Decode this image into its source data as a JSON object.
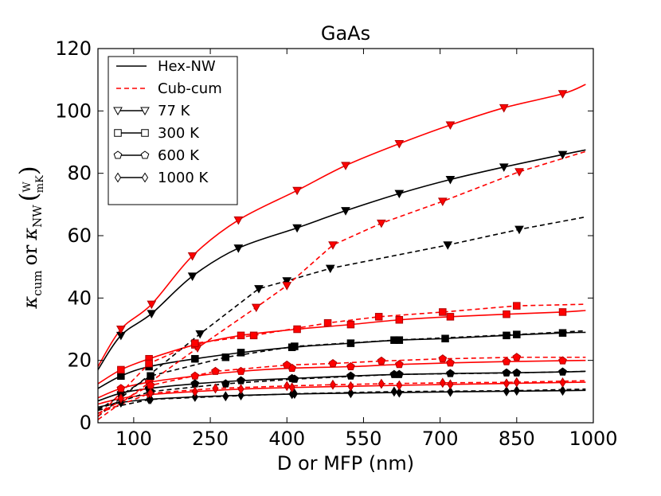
{
  "chart_data": {
    "type": "line",
    "title": "GaAs",
    "xlabel": "D or MFP (nm)",
    "ylabel": {
      "kappa": "κ",
      "cum_sub": "cum",
      "or": "or",
      "nw_sub": "NW",
      "unit_num": "W",
      "unit_den": "mK"
    },
    "xlim": [
      30,
      1000
    ],
    "ylim": [
      0,
      120
    ],
    "x_ticks": [
      100,
      250,
      400,
      550,
      700,
      850,
      1000
    ],
    "y_ticks": [
      0,
      20,
      40,
      60,
      80,
      100,
      120
    ],
    "grid": false,
    "legend_position": "top-left",
    "legend": [
      {
        "label": "Hex-NW",
        "style": "solid",
        "color": "#000000"
      },
      {
        "label": "Cub-cum",
        "style": "dashed",
        "color": "#ff0000"
      },
      {
        "label": "77 K",
        "marker": "triangle-down"
      },
      {
        "label": "300 K",
        "marker": "square"
      },
      {
        "label": "600 K",
        "marker": "pentagon"
      },
      {
        "label": "1000 K",
        "marker": "diamond"
      }
    ],
    "series": [
      {
        "group": "hex-fit",
        "temperature": "77 K",
        "color": "#000000",
        "style": "solid",
        "marker": "triangle-down",
        "x": [
          30,
          75,
          135,
          215,
          305,
          420,
          515,
          620,
          720,
          825,
          940,
          985
        ],
        "y": [
          17,
          28,
          35,
          47,
          56,
          62.5,
          68,
          73.5,
          78,
          82,
          86,
          87.5
        ]
      },
      {
        "group": "hex-fit",
        "temperature": "300 K",
        "color": "#000000",
        "style": "solid",
        "marker": "square",
        "x": [
          30,
          75,
          130,
          220,
          310,
          410,
          525,
          620,
          710,
          830,
          940,
          985
        ],
        "y": [
          11,
          15,
          18,
          20.5,
          22.5,
          24.2,
          25.5,
          26.5,
          27,
          28,
          28.8,
          29
        ]
      },
      {
        "group": "hex-fit",
        "temperature": "600 K",
        "color": "#000000",
        "style": "solid",
        "marker": "pentagon",
        "x": [
          30,
          75,
          130,
          220,
          310,
          410,
          525,
          620,
          720,
          830,
          940,
          985
        ],
        "y": [
          7,
          9.5,
          11,
          12.5,
          13.5,
          14.2,
          15,
          15.5,
          15.8,
          16,
          16.3,
          16.5
        ]
      },
      {
        "group": "hex-fit",
        "temperature": "1000 K",
        "color": "#000000",
        "style": "solid",
        "marker": "diamond",
        "x": [
          30,
          75,
          130,
          220,
          310,
          410,
          525,
          620,
          720,
          830,
          940,
          985
        ],
        "y": [
          5,
          6.5,
          7.5,
          8.3,
          8.8,
          9.2,
          9.5,
          9.7,
          9.9,
          10.1,
          10.3,
          10.4
        ]
      },
      {
        "group": "cub-fit",
        "temperature": "77 K",
        "color": "#ff0000",
        "style": "solid",
        "marker": "triangle-down",
        "x": [
          30,
          75,
          135,
          215,
          305,
          420,
          515,
          620,
          720,
          825,
          940,
          985
        ],
        "y": [
          18,
          30,
          38,
          53.5,
          65,
          74.5,
          82.5,
          89.5,
          95.5,
          101,
          105.5,
          108.5
        ]
      },
      {
        "group": "cub-fit",
        "temperature": "300 K",
        "color": "#ff0000",
        "style": "solid",
        "marker": "square",
        "x": [
          30,
          75,
          130,
          220,
          310,
          420,
          525,
          620,
          720,
          830,
          940,
          985
        ],
        "y": [
          12.5,
          17,
          20.5,
          25,
          28,
          30,
          31.5,
          33,
          34,
          34.8,
          35.5,
          36
        ]
      },
      {
        "group": "cub-fit",
        "temperature": "600 K",
        "color": "#ff0000",
        "style": "solid",
        "marker": "pentagon",
        "x": [
          30,
          75,
          130,
          220,
          310,
          410,
          525,
          620,
          720,
          830,
          940,
          985
        ],
        "y": [
          8,
          11,
          13,
          15,
          16.5,
          17.5,
          18,
          18.7,
          19.2,
          19.6,
          19.9,
          20
        ]
      },
      {
        "group": "cub-fit",
        "temperature": "1000 K",
        "color": "#ff0000",
        "style": "solid",
        "marker": "diamond",
        "x": [
          30,
          75,
          130,
          220,
          310,
          410,
          525,
          620,
          720,
          830,
          940,
          985
        ],
        "y": [
          6,
          7.8,
          9,
          10,
          10.8,
          11.3,
          11.7,
          12,
          12.3,
          12.6,
          12.9,
          13
        ]
      },
      {
        "group": "hex-nw",
        "temperature": "77 K",
        "color": "#000000",
        "style": "dashed",
        "marker": "triangle-down",
        "x": [
          30,
          230,
          345,
          400,
          485,
          715,
          855,
          985
        ],
        "y": [
          2,
          28.5,
          43,
          45.5,
          49.5,
          57,
          62,
          66
        ]
      },
      {
        "group": "hex-nw",
        "temperature": "300 K",
        "color": "#000000",
        "style": "dashed",
        "marker": "square",
        "x": [
          30,
          133,
          280,
          415,
          610,
          850,
          985
        ],
        "y": [
          4,
          15,
          21,
          24.5,
          26.5,
          28.3,
          29.5
        ]
      },
      {
        "group": "hex-nw",
        "temperature": "600 K",
        "color": "#000000",
        "style": "dashed",
        "marker": "pentagon",
        "x": [
          30,
          133,
          280,
          415,
          610,
          850,
          985
        ],
        "y": [
          4.5,
          10,
          12.5,
          14,
          15.5,
          16,
          16.5
        ]
      },
      {
        "group": "hex-nw",
        "temperature": "1000 K",
        "color": "#000000",
        "style": "dashed",
        "marker": "diamond",
        "x": [
          30,
          133,
          280,
          415,
          610,
          850,
          985
        ],
        "y": [
          4,
          7.5,
          8.5,
          9.3,
          10,
          10.3,
          10.8
        ]
      },
      {
        "group": "cub-cum",
        "temperature": "77 K",
        "color": "#ff0000",
        "style": "dashed",
        "marker": "triangle-down",
        "x": [
          30,
          225,
          340,
          400,
          490,
          585,
          705,
          855,
          985
        ],
        "y": [
          1,
          24,
          37,
          44,
          57,
          64,
          71,
          80.5,
          87
        ]
      },
      {
        "group": "cub-cum",
        "temperature": "300 K",
        "color": "#ff0000",
        "style": "dashed",
        "marker": "square",
        "x": [
          30,
          130,
          220,
          335,
          480,
          580,
          705,
          850,
          985
        ],
        "y": [
          2,
          19,
          25.5,
          28,
          32,
          34,
          35.5,
          37.5,
          38
        ]
      },
      {
        "group": "cub-cum",
        "temperature": "600 K",
        "color": "#ff0000",
        "style": "dashed",
        "marker": "pentagon",
        "x": [
          30,
          133,
          260,
          400,
          490,
          585,
          705,
          850,
          985
        ],
        "y": [
          3,
          12,
          16.5,
          18.5,
          19,
          19.8,
          20.5,
          21,
          21
        ]
      },
      {
        "group": "cub-cum",
        "temperature": "1000 K",
        "color": "#ff0000",
        "style": "dashed",
        "marker": "diamond",
        "x": [
          30,
          133,
          260,
          400,
          490,
          585,
          705,
          850,
          985
        ],
        "y": [
          3,
          9.5,
          11,
          11.8,
          12.2,
          12.5,
          12.8,
          13,
          13.5
        ]
      }
    ]
  }
}
